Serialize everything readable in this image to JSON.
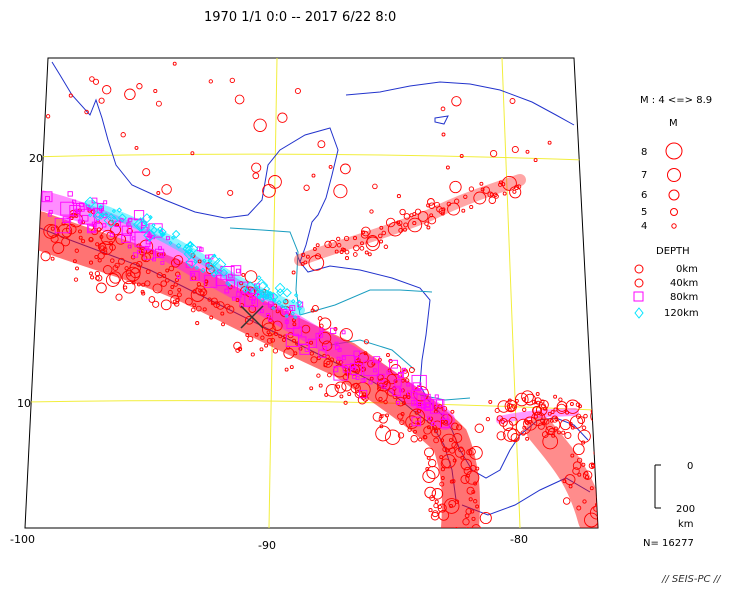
{
  "title": "1970 1/1 0:0 -- 2017 6/22 8:0",
  "axes": {
    "lon_ticks": [
      "-100",
      "-90",
      "-80"
    ],
    "lat_ticks": [
      "20",
      "10"
    ]
  },
  "legend": {
    "magnitude_range": "M : 4 <=> 8.9",
    "magnitude_header": "M",
    "magnitudes": [
      "8",
      "7",
      "6",
      "5",
      "4"
    ],
    "depth_header": "DEPTH",
    "depths": [
      "0km",
      "40km",
      "80km",
      "120km"
    ],
    "depth_colors": [
      "#ff0000",
      "#ff0000",
      "#ff00ff",
      "#00e5ff"
    ],
    "scale_top": "0",
    "scale_bottom": "200",
    "scale_unit": "km",
    "count": "N= 16277"
  },
  "credit": "// SEIS-PC //",
  "colors": {
    "graticule": "#f2ee3c",
    "coastline": "#2233cc",
    "border": "#1a9ec0",
    "shallow": "#ff0000",
    "intermediate": "#ff00ff",
    "deep": "#00e5ff"
  },
  "chart_data": {
    "type": "scatter",
    "title": "1970 1/1 0:0 -- 2017 6/22 8:0",
    "x_ticks": [
      -100,
      -90,
      -80
    ],
    "y_ticks": [
      20,
      10
    ],
    "marked_epicenter": {
      "lon": -90.9,
      "lat": 13.6,
      "symbol": "X"
    },
    "series": [
      {
        "name": "0km",
        "symbol": "circle",
        "color": "#ff0000"
      },
      {
        "name": "40km",
        "symbol": "circle",
        "color": "#ff0000"
      },
      {
        "name": "80km",
        "symbol": "square",
        "color": "#ff00ff"
      },
      {
        "name": "120km",
        "symbol": "diamond",
        "color": "#00e5ff"
      }
    ],
    "point_count": 16277
  }
}
